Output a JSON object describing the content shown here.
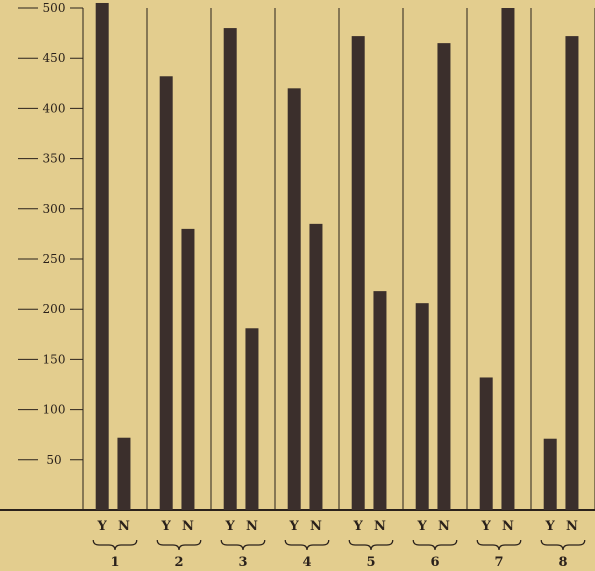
{
  "chart_data": {
    "type": "bar",
    "title": "",
    "xlabel": "",
    "ylabel": "",
    "ylim": [
      0,
      500
    ],
    "yticks": [
      50,
      100,
      150,
      200,
      250,
      300,
      350,
      400,
      450,
      500
    ],
    "ytick_labels": [
      "50",
      "100",
      "150",
      "200",
      "250",
      "300",
      "350",
      "400",
      "450",
      "500"
    ],
    "grid": false,
    "legend": "none",
    "groups": [
      {
        "label": "1",
        "bars": [
          {
            "label": "Y",
            "value": 505
          },
          {
            "label": "N",
            "value": 72
          }
        ]
      },
      {
        "label": "2",
        "bars": [
          {
            "label": "Y",
            "value": 432
          },
          {
            "label": "N",
            "value": 280
          }
        ]
      },
      {
        "label": "3",
        "bars": [
          {
            "label": "Y",
            "value": 480
          },
          {
            "label": "N",
            "value": 181
          }
        ]
      },
      {
        "label": "4",
        "bars": [
          {
            "label": "Y",
            "value": 420
          },
          {
            "label": "N",
            "value": 285
          }
        ]
      },
      {
        "label": "5",
        "bars": [
          {
            "label": "Y",
            "value": 472
          },
          {
            "label": "N",
            "value": 218
          }
        ]
      },
      {
        "label": "6",
        "bars": [
          {
            "label": "Y",
            "value": 206
          },
          {
            "label": "N",
            "value": 465
          }
        ]
      },
      {
        "label": "7",
        "bars": [
          {
            "label": "Y",
            "value": 132
          },
          {
            "label": "N",
            "value": 500
          }
        ]
      },
      {
        "label": "8",
        "bars": [
          {
            "label": "Y",
            "value": 71
          },
          {
            "label": "N",
            "value": 472
          }
        ]
      }
    ],
    "colors": {
      "bar": "#3b2f2c",
      "axis": "#2a211b",
      "background": "#e3cd8e"
    }
  }
}
